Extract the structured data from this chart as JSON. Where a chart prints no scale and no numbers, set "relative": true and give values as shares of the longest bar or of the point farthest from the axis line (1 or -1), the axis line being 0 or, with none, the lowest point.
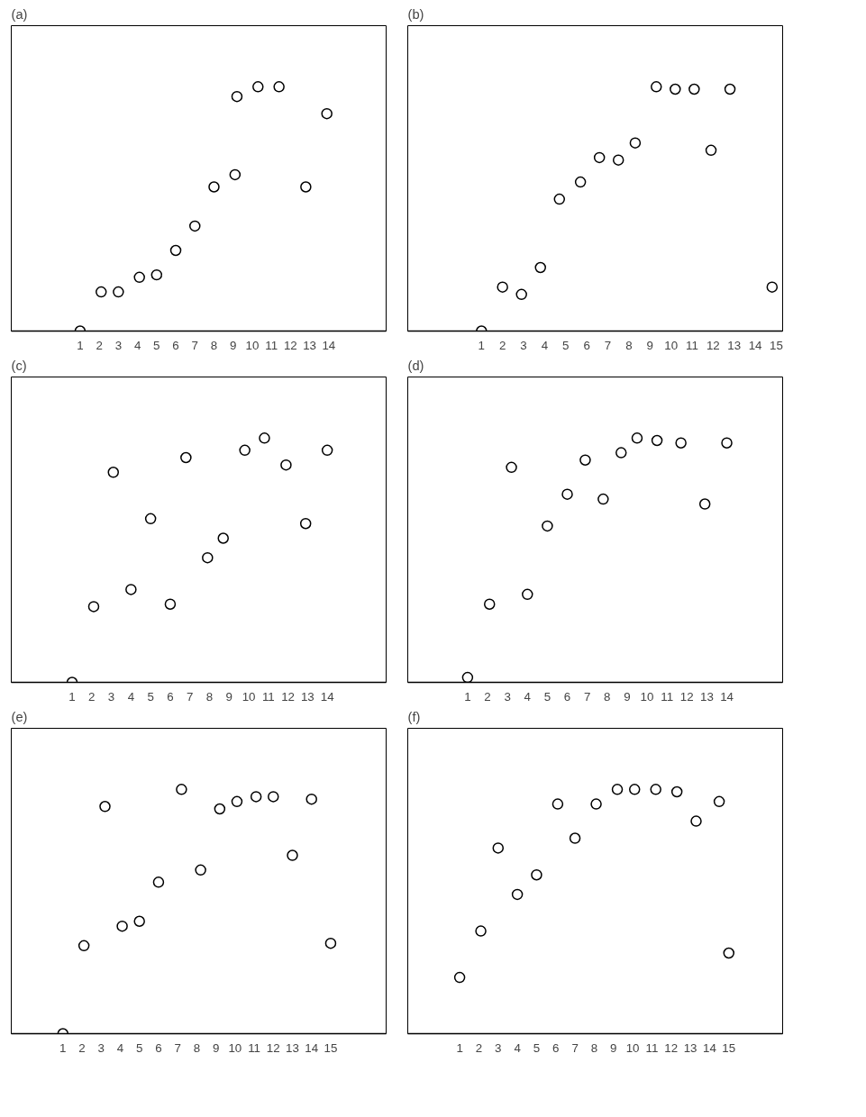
{
  "chart_data": [
    {
      "type": "scatter",
      "title": "(a)",
      "relative": true,
      "marker": "circle",
      "grid": false,
      "xlim": [
        -2.6,
        17.0
      ],
      "xticks": [
        1,
        2,
        3,
        4,
        5,
        6,
        7,
        8,
        9,
        10,
        11,
        12,
        13,
        14
      ],
      "tick_labels": "x",
      "x": [
        1,
        2.1,
        3.0,
        4.1,
        5.0,
        6.0,
        7.0,
        8.0,
        9.1,
        9.2,
        10.3,
        11.4,
        12.8,
        13.9
      ],
      "values": [
        0,
        0.16,
        0.16,
        0.22,
        0.23,
        0.33,
        0.43,
        0.59,
        0.64,
        0.96,
        1.0,
        1.0,
        0.59,
        0.89
      ]
    },
    {
      "type": "scatter",
      "title": "(b)",
      "relative": true,
      "marker": "circle",
      "grid": false,
      "xlim": [
        -2.5,
        15.3
      ],
      "xticks": [
        1,
        2,
        3,
        4,
        5,
        6,
        7,
        8,
        9,
        10,
        11,
        12,
        13,
        14,
        15
      ],
      "tick_labels": "x",
      "x": [
        1,
        2.0,
        2.9,
        3.8,
        4.7,
        5.7,
        6.6,
        7.5,
        8.3,
        9.3,
        10.2,
        11.1,
        11.9,
        12.8,
        14.8
      ],
      "values": [
        0,
        0.18,
        0.15,
        0.26,
        0.54,
        0.61,
        0.71,
        0.7,
        0.77,
        1.0,
        0.99,
        0.99,
        0.74,
        0.99,
        0.18
      ]
    },
    {
      "type": "scatter",
      "title": "(c)",
      "relative": true,
      "marker": "circle",
      "grid": false,
      "xlim": [
        -2.1,
        17.0
      ],
      "xticks": [
        1,
        2,
        3,
        4,
        5,
        6,
        7,
        8,
        9,
        10,
        11,
        12,
        13,
        14
      ],
      "tick_labels": "x",
      "x": [
        1,
        2.1,
        3.1,
        4.0,
        5.0,
        6.0,
        6.8,
        7.9,
        8.7,
        9.8,
        10.8,
        11.9,
        12.9,
        14.0
      ],
      "values": [
        0,
        0.31,
        0.86,
        0.38,
        0.67,
        0.32,
        0.92,
        0.51,
        0.59,
        0.95,
        1.0,
        0.89,
        0.65,
        0.95
      ]
    },
    {
      "type": "scatter",
      "title": "(d)",
      "relative": true,
      "marker": "circle",
      "grid": false,
      "xlim": [
        -2.0,
        16.8
      ],
      "xticks": [
        1,
        2,
        3,
        4,
        5,
        6,
        7,
        8,
        9,
        10,
        11,
        12,
        13,
        14
      ],
      "tick_labels": "x",
      "x": [
        1,
        2.1,
        3.2,
        4.0,
        5.0,
        6.0,
        6.9,
        7.8,
        8.7,
        9.5,
        10.5,
        11.7,
        12.9,
        14.0
      ],
      "values": [
        0.02,
        0.32,
        0.88,
        0.36,
        0.64,
        0.77,
        0.91,
        0.75,
        0.94,
        1.0,
        0.99,
        0.98,
        0.73,
        0.98
      ]
    },
    {
      "type": "scatter",
      "title": "(e)",
      "relative": true,
      "marker": "circle",
      "grid": false,
      "xlim": [
        -1.7,
        17.9
      ],
      "xticks": [
        1,
        2,
        3,
        4,
        5,
        6,
        7,
        8,
        9,
        10,
        11,
        12,
        13,
        14,
        15
      ],
      "tick_labels": "x",
      "x": [
        1,
        2.1,
        3.2,
        4.1,
        5.0,
        6.0,
        7.2,
        8.2,
        9.2,
        10.1,
        11.1,
        12.0,
        13.0,
        14.0,
        15.0
      ],
      "values": [
        0,
        0.36,
        0.93,
        0.44,
        0.46,
        0.62,
        1.0,
        0.67,
        0.92,
        0.95,
        0.97,
        0.97,
        0.73,
        0.96,
        0.37
      ]
    },
    {
      "type": "scatter",
      "title": "(f)",
      "relative": true,
      "marker": "circle",
      "grid": false,
      "xlim": [
        -1.7,
        17.8
      ],
      "xticks": [
        1,
        2,
        3,
        4,
        5,
        6,
        7,
        8,
        9,
        10,
        11,
        12,
        13,
        14,
        15
      ],
      "tick_labels": "x",
      "x": [
        1,
        2.1,
        3.0,
        4.0,
        5.0,
        6.1,
        7.0,
        8.1,
        9.2,
        10.1,
        11.2,
        12.3,
        13.3,
        14.5,
        15.0
      ],
      "values": [
        0.23,
        0.42,
        0.76,
        0.57,
        0.65,
        0.94,
        0.8,
        0.94,
        1.0,
        1.0,
        1.0,
        0.99,
        0.87,
        0.95,
        0.33
      ]
    }
  ]
}
